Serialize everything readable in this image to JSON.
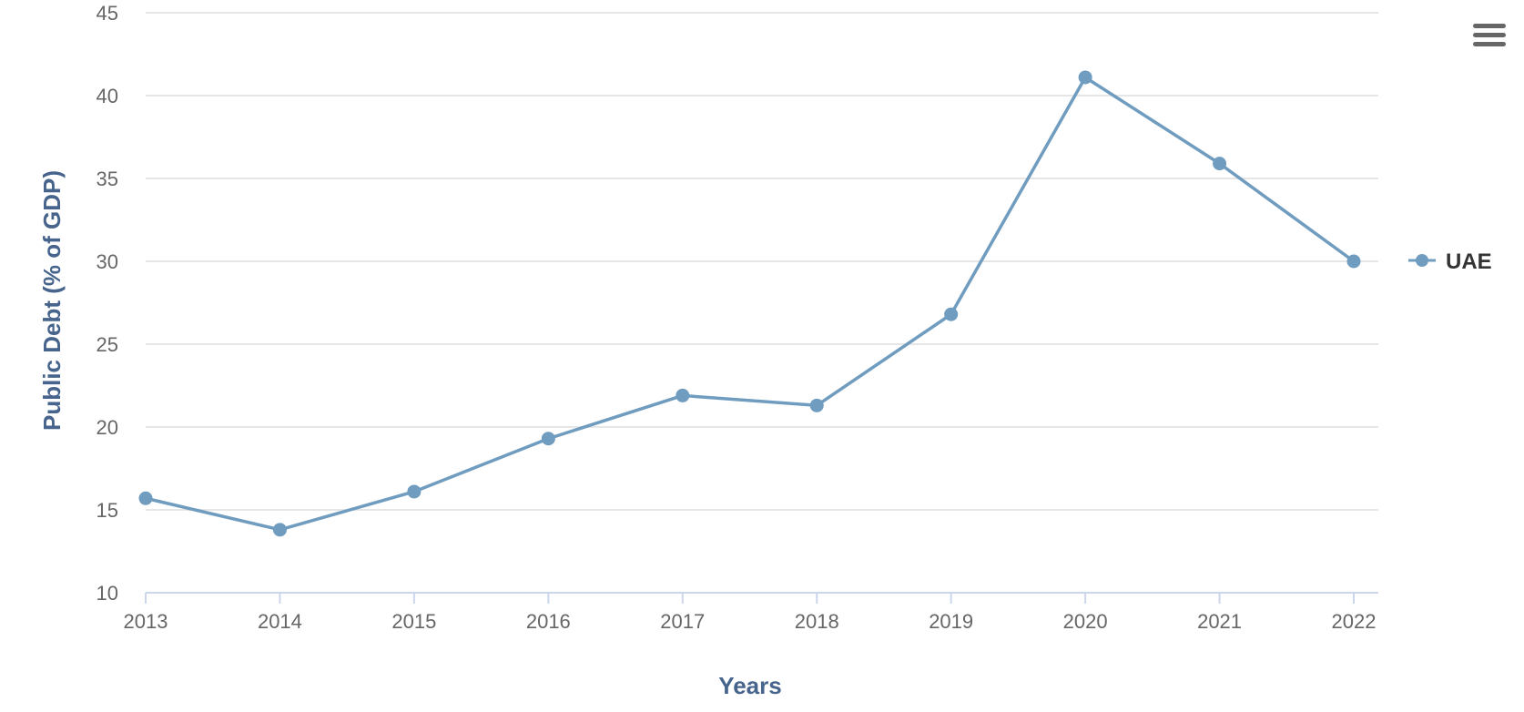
{
  "chart_data": {
    "type": "line",
    "xlabel": "Years",
    "ylabel": "Public Debt (% of GDP)",
    "ylim": [
      10,
      45
    ],
    "yticks": [
      10,
      15,
      20,
      25,
      30,
      35,
      40,
      45
    ],
    "categories": [
      "2013",
      "2014",
      "2015",
      "2016",
      "2017",
      "2018",
      "2019",
      "2020",
      "2021",
      "2022"
    ],
    "series": [
      {
        "name": "UAE",
        "color": "#6f9cbf",
        "values": [
          15.7,
          13.8,
          16.1,
          19.3,
          21.9,
          21.3,
          26.8,
          41.1,
          35.9,
          30.0
        ]
      }
    ],
    "grid": true,
    "legend": "right"
  },
  "menu": {
    "icon": "hamburger-menu-icon"
  }
}
